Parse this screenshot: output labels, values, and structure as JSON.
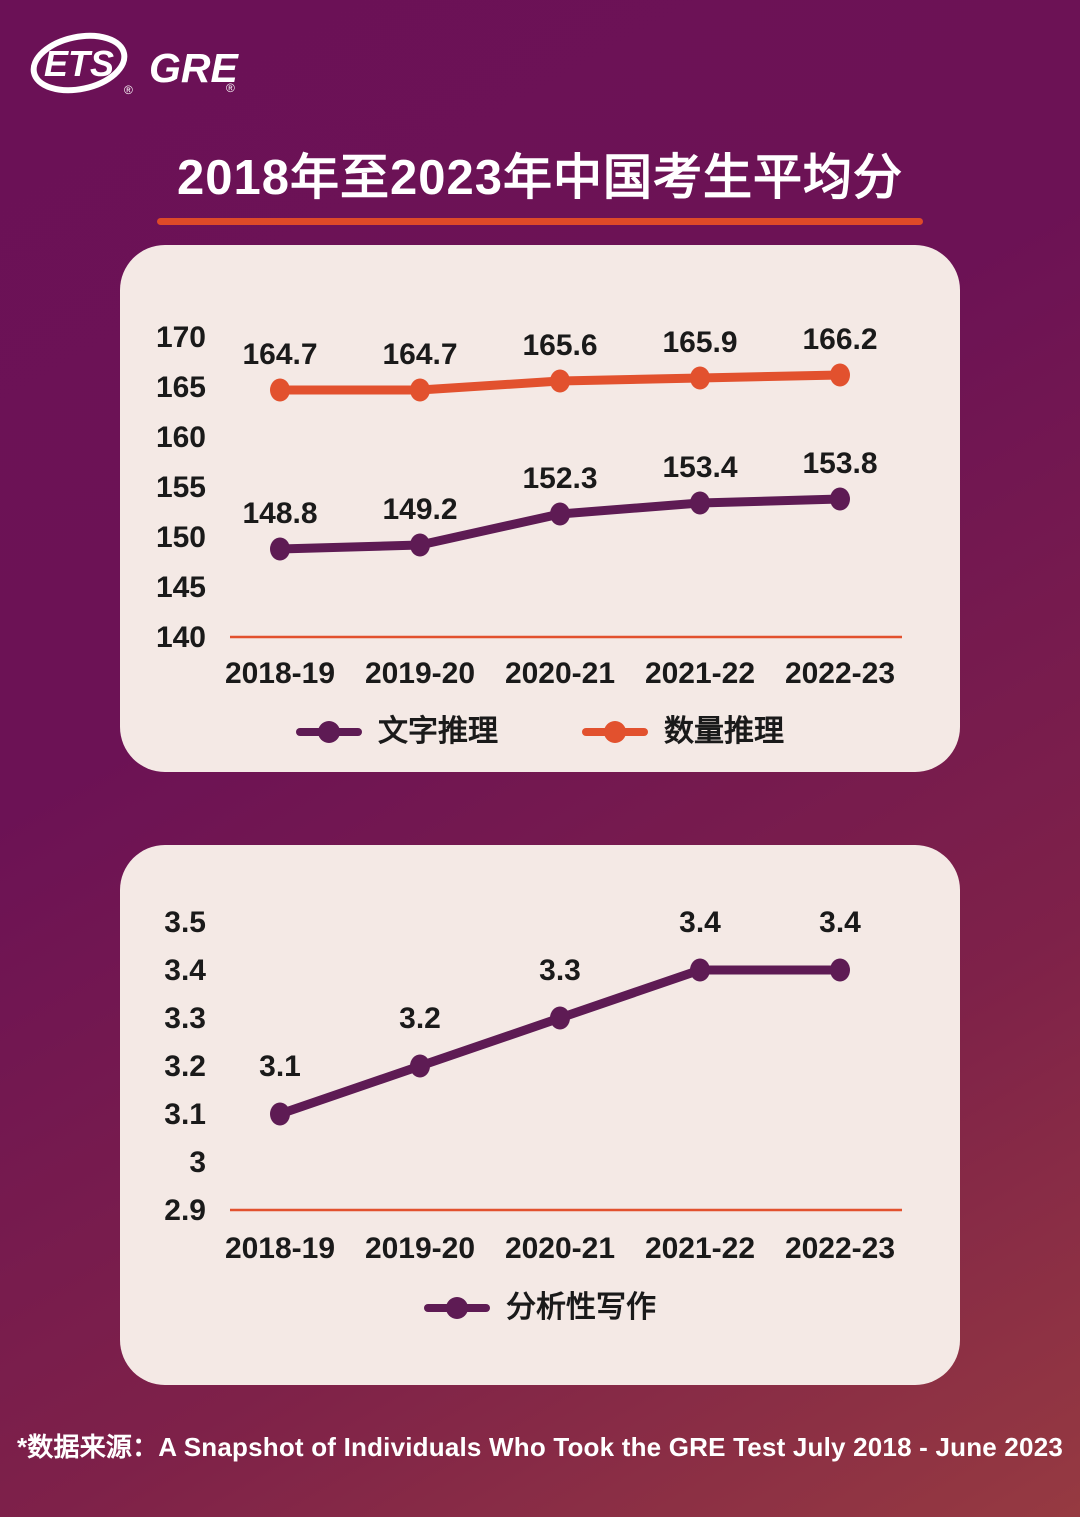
{
  "logo": {
    "ets": "ETS",
    "gre": "GRE",
    "reg": "®"
  },
  "title": "2018年至2023年中国考生平均分",
  "footer_note": "*数据来源：A Snapshot of Individuals Who Took the GRE Test July 2018 - June 2023",
  "colors": {
    "background_top": "#6B1156",
    "background_bottom": "#963A41",
    "panel": "#F4E9E5",
    "purple": "#5E1B54",
    "orange": "#E2512E",
    "title_underline": "#DE4A28",
    "label_text": "#1A1A1A"
  },
  "chart_data": [
    {
      "type": "line",
      "title": "GRE verbal and quantitative average scores of Chinese test takers",
      "categories": [
        "2018-19",
        "2019-20",
        "2020-21",
        "2021-22",
        "2022-23"
      ],
      "series": [
        {
          "name": "文字推理",
          "color_key": "purple",
          "values": [
            148.8,
            149.2,
            152.3,
            153.4,
            153.8
          ]
        },
        {
          "name": "数量推理",
          "color_key": "orange",
          "values": [
            164.7,
            164.7,
            165.6,
            165.9,
            166.2
          ]
        }
      ],
      "yticks": [
        170,
        165,
        160,
        155,
        150,
        145,
        140
      ],
      "ylim": [
        140,
        170
      ],
      "grid": false,
      "legend_position": "bottom"
    },
    {
      "type": "line",
      "title": "GRE analytical writing average scores of Chinese test takers",
      "categories": [
        "2018-19",
        "2019-20",
        "2020-21",
        "2021-22",
        "2022-23"
      ],
      "series": [
        {
          "name": "分析性写作",
          "color_key": "purple",
          "values": [
            3.1,
            3.2,
            3.3,
            3.4,
            3.4
          ]
        }
      ],
      "yticks": [
        3.5,
        3.4,
        3.3,
        3.2,
        3.1,
        3,
        2.9
      ],
      "ylim": [
        2.9,
        3.5
      ],
      "grid": false,
      "legend_position": "bottom"
    }
  ]
}
